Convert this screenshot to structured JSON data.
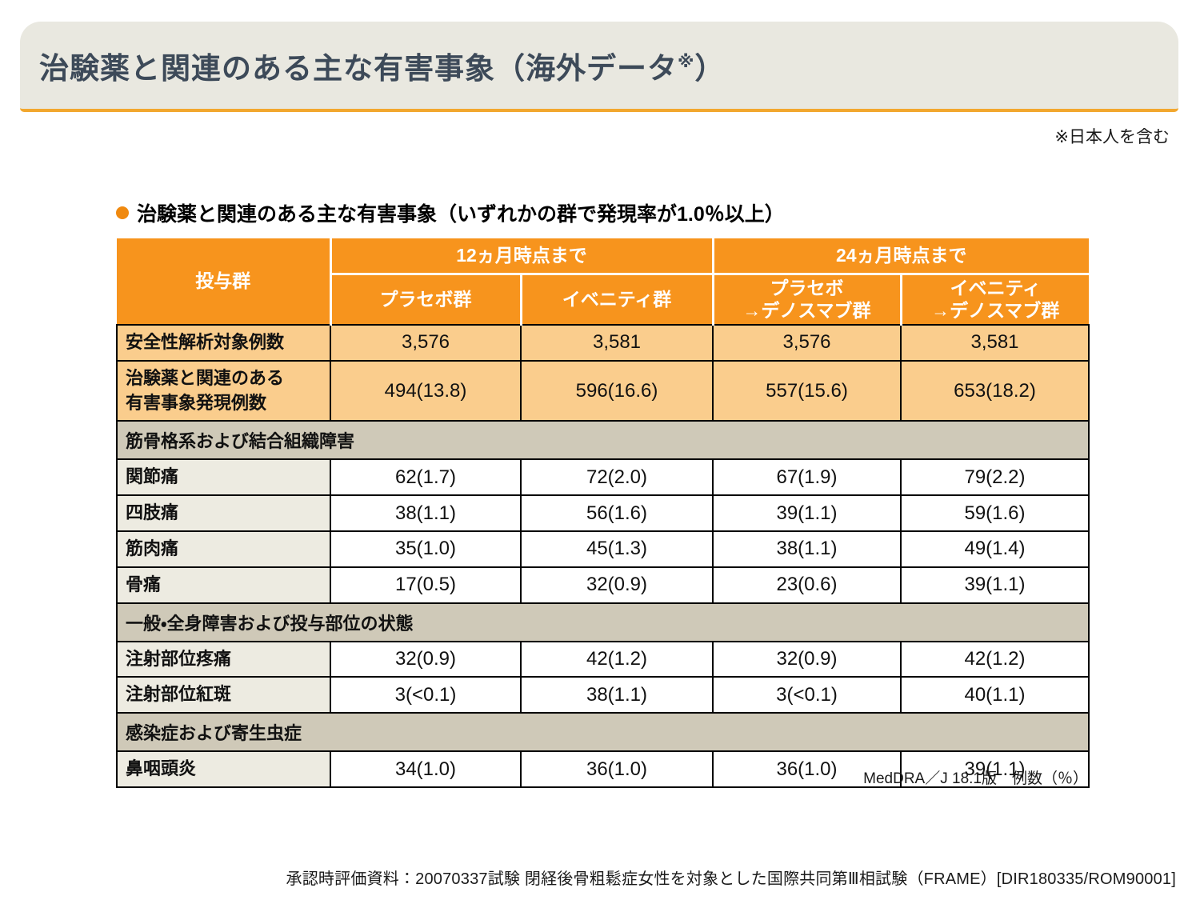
{
  "page": {
    "title_main": "治験薬と関連のある主な有害事象（海外データ",
    "title_ref_mark": "※",
    "title_close": "）",
    "top_note": "※日本人を含む",
    "footer": "承認時評価資料：20070337試験 閉経後骨粗鬆症女性を対象とした国際共同第Ⅲ相試験（FRAME）[DIR180335/ROM90001]"
  },
  "list_heading": "治験薬と関連のある主な有害事象（いずれかの群で発現率が1.0％以上）",
  "table": {
    "corner_header": "投与群",
    "period_headers": [
      "12ヵ月時点まで",
      "24ヵ月時点まで"
    ],
    "group_headers": [
      "プラセボ群",
      "イベニティ群",
      "プラセボ\n→デノスマブ群",
      "イベニティ\n→デノスマブ群"
    ],
    "rows": [
      {
        "type": "data",
        "style": "orange",
        "label": "安全性解析対象例数",
        "values": [
          "3,576",
          "3,581",
          "3,576",
          "3,581"
        ]
      },
      {
        "type": "data",
        "style": "orange",
        "label": "治験薬と関連のある\n有害事象発現例数",
        "values": [
          "494(13.8)",
          "596(16.6)",
          "557(15.6)",
          "653(18.2)"
        ]
      },
      {
        "type": "section",
        "label": "筋骨格系および結合組織障害"
      },
      {
        "type": "data",
        "style": "white",
        "label": "関節痛",
        "values": [
          "62(1.7)",
          "72(2.0)",
          "67(1.9)",
          "79(2.2)"
        ]
      },
      {
        "type": "data",
        "style": "white",
        "label": "四肢痛",
        "values": [
          "38(1.1)",
          "56(1.6)",
          "39(1.1)",
          "59(1.6)"
        ]
      },
      {
        "type": "data",
        "style": "white",
        "label": "筋肉痛",
        "values": [
          "35(1.0)",
          "45(1.3)",
          "38(1.1)",
          "49(1.4)"
        ]
      },
      {
        "type": "data",
        "style": "white",
        "label": "骨痛",
        "values": [
          "17(0.5)",
          "32(0.9)",
          "23(0.6)",
          "39(1.1)"
        ]
      },
      {
        "type": "section",
        "label": "一般・全身障害および投与部位の状態"
      },
      {
        "type": "data",
        "style": "white",
        "label": "注射部位疼痛",
        "values": [
          "32(0.9)",
          "42(1.2)",
          "32(0.9)",
          "42(1.2)"
        ]
      },
      {
        "type": "data",
        "style": "white",
        "label": "注射部位紅斑",
        "values": [
          "3(<0.1)",
          "38(1.1)",
          "3(<0.1)",
          "40(1.1)"
        ]
      },
      {
        "type": "section",
        "label": "感染症および寄生虫症"
      },
      {
        "type": "data",
        "style": "white",
        "label": "鼻咽頭炎",
        "values": [
          "34(1.0)",
          "36(1.0)",
          "36(1.0)",
          "39(1.1)"
        ]
      }
    ],
    "footnote": "MedDRA／J 18.1版　例数（％）"
  },
  "colors": {
    "header_orange": "#F7941D",
    "row_orange": "#FACD8D",
    "section_tan": "#CFC9B8",
    "label_beige": "#EDEBE1",
    "banner_beige": "#E9E8E0",
    "banner_line_orange": "#F2A72E",
    "title_slate": "#3D4A59",
    "bullet_orange": "#F0890F"
  }
}
